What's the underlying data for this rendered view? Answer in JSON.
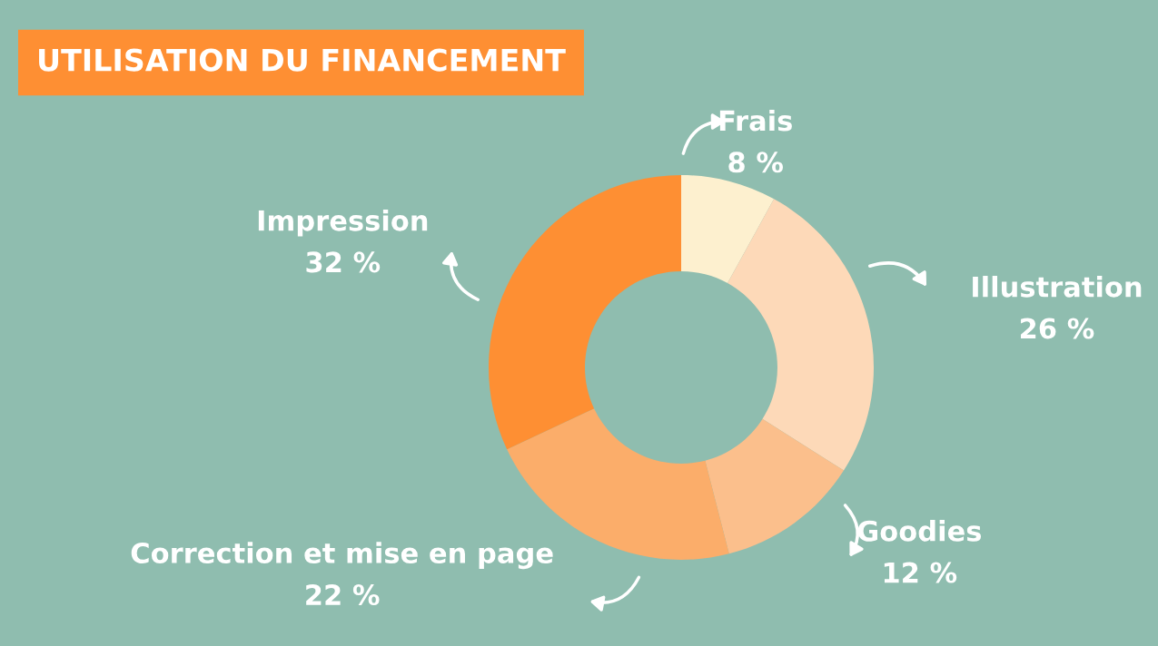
{
  "chart_data": {
    "type": "donut",
    "title": "UTILISATION DU FINANCEMENT",
    "categories": [
      "Frais",
      "Illustration",
      "Goodies",
      "Correction et mise en page",
      "Impression"
    ],
    "values": [
      8,
      26,
      12,
      22,
      32
    ],
    "colors": [
      "#fdf0cf",
      "#fdd9b8",
      "#fbbf8c",
      "#fbad6a",
      "#fe8f33"
    ],
    "value_labels": [
      "8 %",
      "26 %",
      "12 %",
      "22 %",
      "32 %"
    ],
    "legend": false
  }
}
